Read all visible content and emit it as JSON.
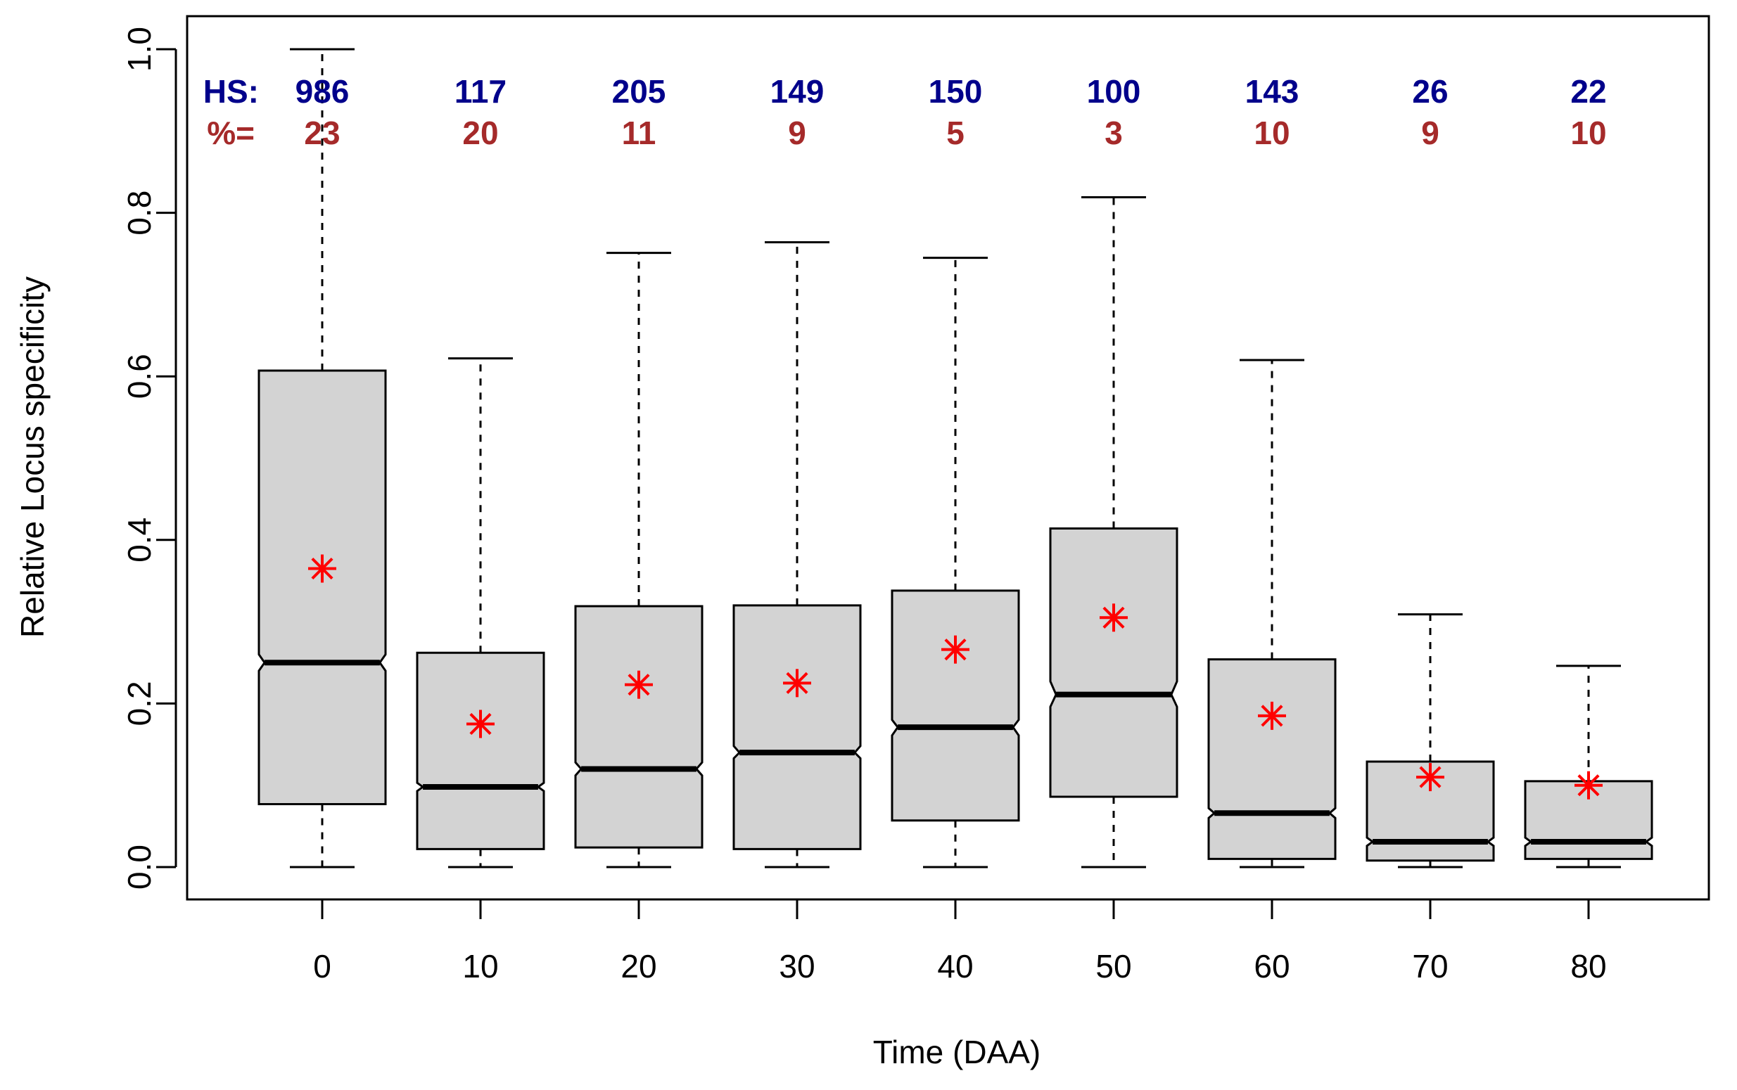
{
  "chart_data": {
    "type": "boxplot",
    "xlabel": "Time (DAA)",
    "ylabel": "Relative Locus specificity",
    "ylim": [
      0.0,
      1.0
    ],
    "yticks": [
      "0.0",
      "0.2",
      "0.4",
      "0.6",
      "0.8",
      "1.0"
    ],
    "categories": [
      "0",
      "10",
      "20",
      "30",
      "40",
      "50",
      "60",
      "70",
      "80"
    ],
    "notched": true,
    "series": [
      {
        "category": "0",
        "whisker_low": 0.0,
        "q1": 0.077,
        "median": 0.25,
        "q3": 0.607,
        "whisker_high": 1.0,
        "notch_low": 0.24,
        "notch_high": 0.26,
        "mean": 0.365
      },
      {
        "category": "10",
        "whisker_low": 0.0,
        "q1": 0.022,
        "median": 0.098,
        "q3": 0.262,
        "whisker_high": 0.622,
        "notch_low": 0.093,
        "notch_high": 0.103,
        "mean": 0.175
      },
      {
        "category": "20",
        "whisker_low": 0.0,
        "q1": 0.024,
        "median": 0.12,
        "q3": 0.319,
        "whisker_high": 0.751,
        "notch_low": 0.112,
        "notch_high": 0.128,
        "mean": 0.223
      },
      {
        "category": "30",
        "whisker_low": 0.0,
        "q1": 0.022,
        "median": 0.14,
        "q3": 0.32,
        "whisker_high": 0.764,
        "notch_low": 0.133,
        "notch_high": 0.148,
        "mean": 0.225
      },
      {
        "category": "40",
        "whisker_low": 0.0,
        "q1": 0.057,
        "median": 0.171,
        "q3": 0.338,
        "whisker_high": 0.745,
        "notch_low": 0.161,
        "notch_high": 0.18,
        "mean": 0.266
      },
      {
        "category": "50",
        "whisker_low": 0.0,
        "q1": 0.086,
        "median": 0.211,
        "q3": 0.414,
        "whisker_high": 0.819,
        "notch_low": 0.196,
        "notch_high": 0.227,
        "mean": 0.305
      },
      {
        "category": "60",
        "whisker_low": 0.0,
        "q1": 0.01,
        "median": 0.066,
        "q3": 0.254,
        "whisker_high": 0.62,
        "notch_low": 0.06,
        "notch_high": 0.072,
        "mean": 0.185
      },
      {
        "category": "70",
        "whisker_low": 0.0,
        "q1": 0.008,
        "median": 0.031,
        "q3": 0.129,
        "whisker_high": 0.309,
        "notch_low": 0.026,
        "notch_high": 0.036,
        "mean": 0.11
      },
      {
        "category": "80",
        "whisker_low": 0.0,
        "q1": 0.01,
        "median": 0.031,
        "q3": 0.105,
        "whisker_high": 0.246,
        "notch_low": 0.026,
        "notch_high": 0.036,
        "mean": 0.1
      }
    ],
    "annotations": {
      "hs_label": "HS:",
      "pct_label": "%=",
      "hs_values": [
        "986",
        "117",
        "205",
        "149",
        "150",
        "100",
        "143",
        "26",
        "22"
      ],
      "pct_values": [
        "23",
        "20",
        "11",
        "9",
        "5",
        "3",
        "10",
        "9",
        "10"
      ]
    },
    "colors": {
      "box_fill": "#d3d3d3",
      "box_stroke": "#000000",
      "mean_marker": "#ff0000",
      "hs_text": "#00008b",
      "pct_text": "#a52a2a"
    }
  }
}
